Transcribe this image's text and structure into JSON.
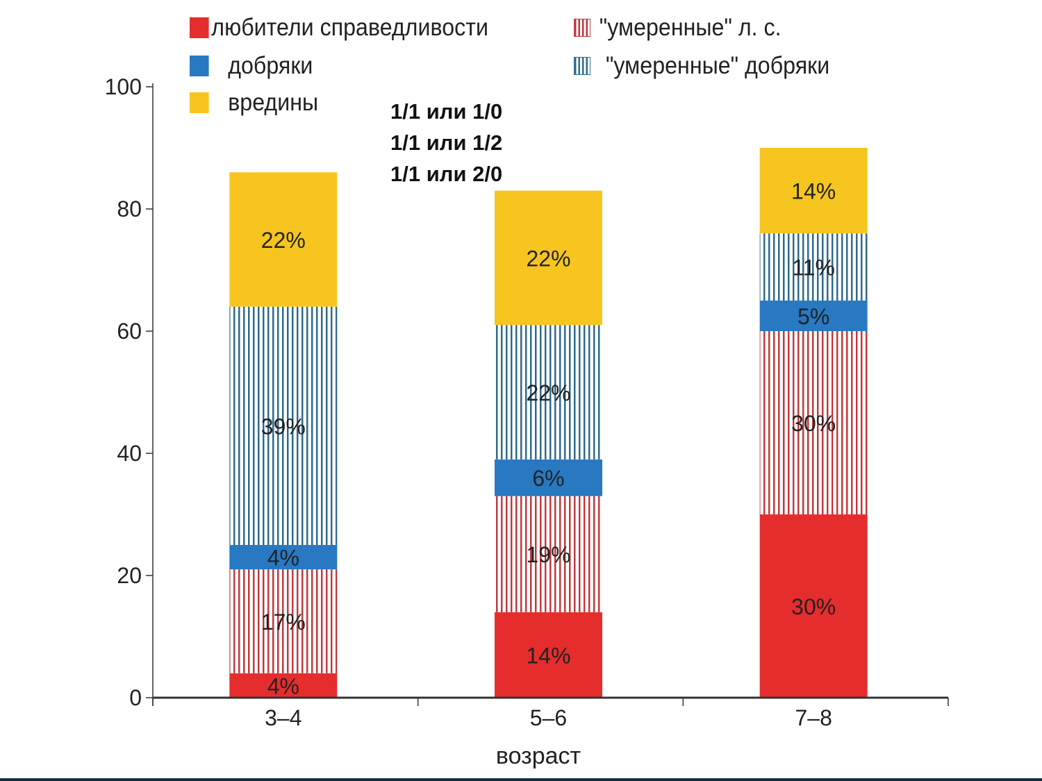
{
  "chart_data": {
    "type": "bar",
    "stacked": true,
    "title": "",
    "xlabel": "возраст",
    "ylabel": "",
    "ylim": [
      0,
      100
    ],
    "yticks": [
      "0",
      "20",
      "40",
      "60",
      "80",
      "100"
    ],
    "categories": [
      "3–4",
      "5–6",
      "7–8"
    ],
    "series": [
      {
        "name": "любители справедливости",
        "color": "#e52d2d",
        "pattern": "solid",
        "values": [
          4,
          14,
          30
        ],
        "labels": [
          "4%",
          "14%",
          "30%"
        ]
      },
      {
        "name": "\"умеренные\" л. с.",
        "color": "#c0393c",
        "pattern": "striped",
        "values": [
          17,
          19,
          30
        ],
        "labels": [
          "17%",
          "19%",
          "30%"
        ]
      },
      {
        "name": "добряки",
        "color": "#2878c2",
        "pattern": "solid",
        "values": [
          4,
          6,
          5
        ],
        "labels": [
          "4%",
          "6%",
          "5%"
        ]
      },
      {
        "name": "\"умеренные\" добряки",
        "color": "#2e6a8c",
        "pattern": "striped",
        "values": [
          39,
          22,
          11
        ],
        "labels": [
          "39%",
          "22%",
          "11%"
        ]
      },
      {
        "name": "вредины",
        "color": "#f7c520",
        "pattern": "solid",
        "values": [
          22,
          22,
          14
        ],
        "labels": [
          "22%",
          "22%",
          "14%"
        ]
      }
    ],
    "legend_placement": "top",
    "annotations": [
      "1/1 или 1/0",
      "1/1 или 1/2",
      "1/1 или 2/0"
    ]
  }
}
